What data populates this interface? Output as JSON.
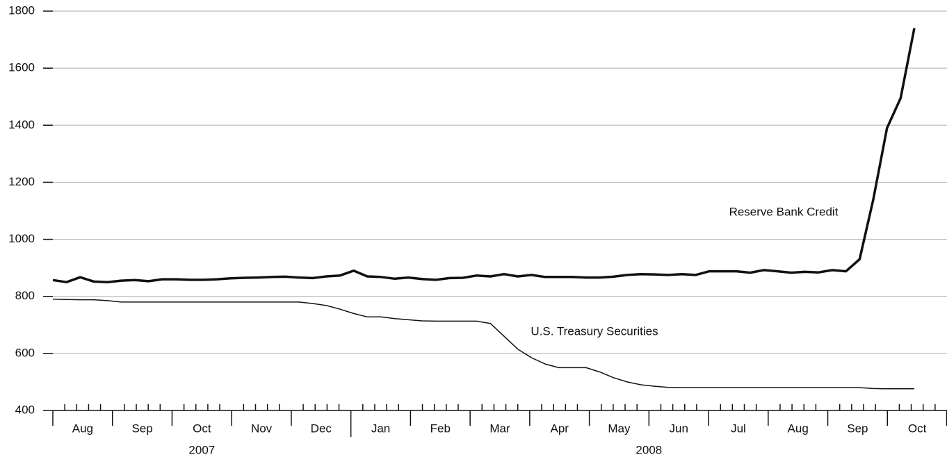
{
  "chart_data": {
    "type": "line",
    "series": [
      {
        "name": "Reserve Bank Credit",
        "color": "#111111",
        "width": 3.5,
        "values": [
          857,
          850,
          867,
          852,
          850,
          855,
          857,
          853,
          860,
          860,
          858,
          858,
          860,
          863,
          865,
          866,
          868,
          869,
          866,
          864,
          870,
          873,
          890,
          870,
          868,
          862,
          866,
          861,
          858,
          864,
          865,
          873,
          870,
          878,
          870,
          875,
          868,
          868,
          868,
          866,
          866,
          869,
          875,
          878,
          877,
          875,
          878,
          875,
          888,
          888,
          888,
          883,
          892,
          888,
          883,
          886,
          884,
          892,
          888,
          930,
          1140,
          1390,
          1495,
          1740
        ]
      },
      {
        "name": "U.S. Treasury Securities",
        "color": "#111111",
        "width": 1.5,
        "values": [
          790,
          789,
          788,
          788,
          785,
          780,
          780,
          780,
          780,
          780,
          780,
          780,
          780,
          780,
          780,
          780,
          780,
          780,
          780,
          775,
          768,
          755,
          740,
          728,
          728,
          722,
          718,
          714,
          713,
          713,
          713,
          713,
          705,
          660,
          615,
          585,
          563,
          550,
          550,
          550,
          535,
          515,
          500,
          490,
          485,
          481,
          480,
          480,
          480,
          480,
          480,
          480,
          480,
          480,
          480,
          480,
          480,
          480,
          480,
          480,
          477,
          476,
          476,
          476
        ]
      }
    ],
    "months": [
      "Aug",
      "Sep",
      "Oct",
      "Nov",
      "Dec",
      "Jan",
      "Feb",
      "Mar",
      "Apr",
      "May",
      "Jun",
      "Jul",
      "Aug",
      "Sep",
      "Oct"
    ],
    "years": [
      {
        "label": "2007",
        "months": 5
      },
      {
        "label": "2008",
        "months": 10
      }
    ],
    "ylim": [
      400,
      1800
    ],
    "yticks": [
      400,
      600,
      800,
      1000,
      1200,
      1400,
      1600,
      1800
    ],
    "grid": true
  }
}
